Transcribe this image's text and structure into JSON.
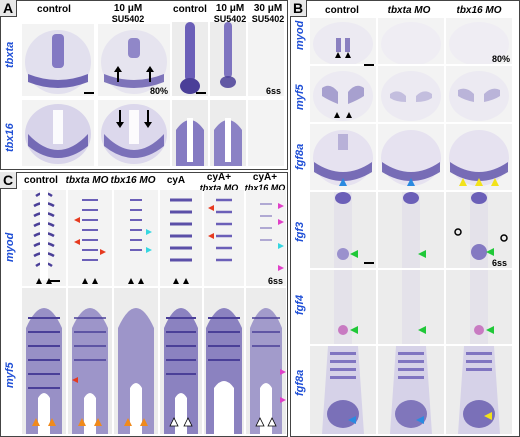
{
  "panels": {
    "A": {
      "letter": "A",
      "columns": [
        {
          "text": "control",
          "italic": false
        },
        {
          "text": "10 μM",
          "sub": "SU5402",
          "italic": false
        },
        {
          "text": "control",
          "italic": false
        },
        {
          "text": "10 μM",
          "sub": "SU5402",
          "italic": false
        },
        {
          "text": "30 μM",
          "sub": "SU5402",
          "italic": false
        }
      ],
      "rows": [
        "tbxta",
        "tbx16"
      ],
      "percent": "80%",
      "stage": "6ss"
    },
    "B": {
      "letter": "B",
      "columns": [
        {
          "text": "control",
          "italic": false
        },
        {
          "text": "tbxta MO",
          "italic": true
        },
        {
          "text": "tbx16 MO",
          "italic": true
        }
      ],
      "rows": [
        "myod",
        "myf5",
        "fgf8a",
        "fgf3",
        "fgf4",
        "fgf8a"
      ],
      "percent": "80%",
      "stage": "6ss"
    },
    "C": {
      "letter": "C",
      "columns": [
        {
          "text": "control",
          "italic": false
        },
        {
          "text": "tbxta MO",
          "italic": true
        },
        {
          "text": "tbx16 MO",
          "italic": true
        },
        {
          "text": "cyA",
          "italic": false
        },
        {
          "text": "cyA+",
          "sub": "tbxta MO",
          "italic": false
        },
        {
          "text": "cyA+",
          "sub": "tbx16 MO",
          "italic": false
        }
      ],
      "rows": [
        "myod",
        "myf5"
      ],
      "stage": "6ss"
    }
  },
  "colors": {
    "stain": "#5b4fa8",
    "label_blue": "#1f4fd6",
    "arrow_red": "#e63a1f",
    "arrow_cyan": "#35d6e0",
    "arrow_magenta": "#e040c8",
    "arrow_orange": "#f08a1c",
    "arrow_green": "#20c838",
    "arrow_yellow": "#f2e21a",
    "arrow_blue": "#2a8ae0"
  }
}
